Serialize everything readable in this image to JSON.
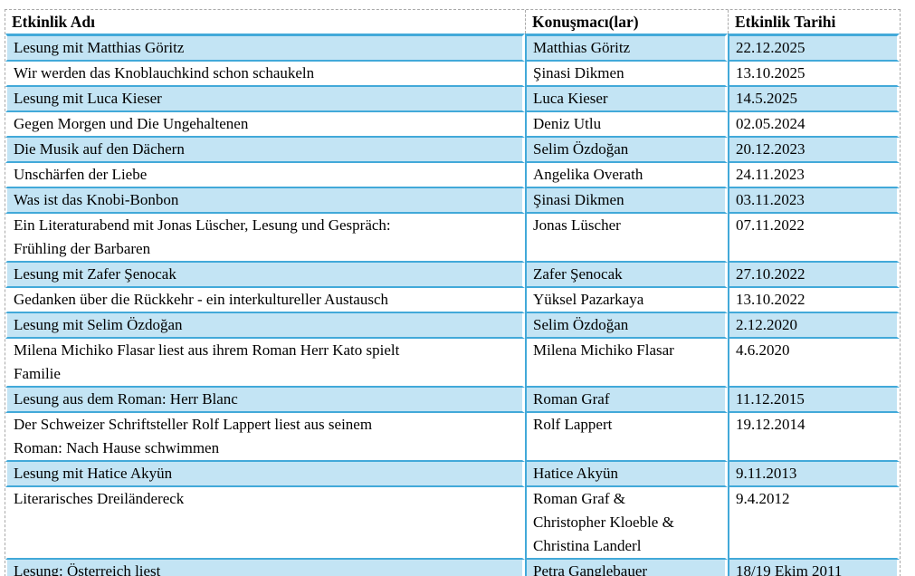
{
  "table": {
    "columns": [
      {
        "label": "Etkinlik Adı"
      },
      {
        "label": "Konuşmacı(lar)"
      },
      {
        "label": "Etkinlik Tarihi"
      }
    ],
    "rows": [
      {
        "name": "Lesung mit Matthias Göritz",
        "speaker": "Matthias Göritz",
        "date": "22.12.2025"
      },
      {
        "name": "Wir werden das Knoblauchkind schon schaukeln",
        "speaker": "Şinasi Dikmen",
        "date": "13.10.2025"
      },
      {
        "name": "Lesung mit Luca Kieser",
        "speaker": "Luca Kieser",
        "date": "14.5.2025"
      },
      {
        "name": "Gegen Morgen und Die Ungehaltenen",
        "speaker": "Deniz Utlu",
        "date": "02.05.2024"
      },
      {
        "name": "Die Musik auf den Dächern",
        "speaker": "Selim Özdoğan",
        "date": "20.12.2023"
      },
      {
        "name": "Unschärfen der Liebe",
        "speaker": "Angelika Overath",
        "date": "24.11.2023"
      },
      {
        "name": "Was ist das Knobi-Bonbon",
        "speaker": "Şinasi Dikmen",
        "date": "03.11.2023"
      },
      {
        "name": "Ein Literaturabend mit Jonas Lüscher, Lesung und Gespräch:\nFrühling der Barbaren",
        "speaker": "Jonas Lüscher",
        "date": "07.11.2022"
      },
      {
        "name": "Lesung mit Zafer Şenocak",
        "speaker": "Zafer Şenocak",
        "date": "27.10.2022"
      },
      {
        "name": "Gedanken über die Rückkehr - ein interkultureller Austausch",
        "speaker": "Yüksel Pazarkaya",
        "date": "13.10.2022"
      },
      {
        "name": "Lesung mit Selim Özdoğan",
        "speaker": "Selim Özdoğan",
        "date": "2.12.2020"
      },
      {
        "name": "Milena Michiko Flasar liest aus ihrem Roman Herr Kato spielt\nFamilie",
        "speaker": "Milena Michiko Flasar",
        "date": "4.6.2020"
      },
      {
        "name": "Lesung aus dem Roman: Herr Blanc",
        "speaker": "Roman Graf",
        "date": "11.12.2015"
      },
      {
        "name": "Der Schweizer Schriftsteller Rolf Lappert liest aus seinem\nRoman: Nach Hause schwimmen",
        "speaker": "Rolf Lappert",
        "date": "19.12.2014"
      },
      {
        "name": "Lesung mit Hatice Akyün",
        "speaker": "Hatice Akyün",
        "date": "9.11.2013"
      },
      {
        "name": "Literarisches Dreiländereck",
        "speaker": "Roman Graf &\nChristopher Kloeble &\nChristina Landerl",
        "date": "9.4.2012"
      },
      {
        "name": "Lesung: Österreich liest",
        "speaker": "Petra Ganglebauer",
        "date": "18/19 Ekim 2011"
      }
    ]
  },
  "colors": {
    "row_highlight": "#c3e4f4",
    "table_border": "#42a9d9",
    "grid_line": "#a9a9a9",
    "text": "#000000",
    "background": "#ffffff"
  }
}
